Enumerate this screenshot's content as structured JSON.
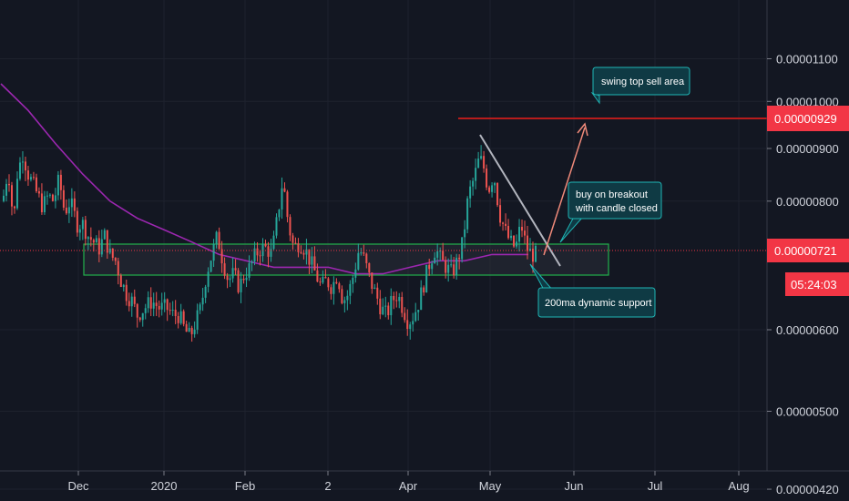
{
  "chart_data": {
    "type": "candlestick",
    "title": "",
    "xlabel": "",
    "ylabel": "",
    "ylim": [
      4.2e-06,
      1.15e-05
    ],
    "y_scale": "log",
    "grid": true,
    "x_ticks": [
      "Dec",
      "2020",
      "Feb",
      "2",
      "Apr",
      "May",
      "Jun",
      "Jul",
      "Aug"
    ],
    "y_ticks": [
      "0.00001100",
      "0.00001000",
      "0.00000900",
      "0.00000800",
      "0.00000600",
      "0.00000500",
      "0.00000420"
    ],
    "horizontal_line": {
      "label": "0.00000929",
      "value": 9.29e-06,
      "color": "#f23645"
    },
    "last_price": {
      "label": "0.00000721",
      "value": 7.21e-06,
      "countdown": "05:24:03",
      "color": "#f23645"
    },
    "series": [
      {
        "name": "200ma",
        "color": "#9c27b0",
        "points": [
          [
            0,
            1.04e-05
          ],
          [
            30,
            9.8e-06
          ],
          [
            60,
            9.1e-06
          ],
          [
            90,
            8.5e-06
          ],
          [
            120,
            8e-06
          ],
          [
            150,
            7.7e-06
          ],
          [
            180,
            7.5e-06
          ],
          [
            210,
            7.3e-06
          ],
          [
            240,
            7.1e-06
          ],
          [
            270,
            7e-06
          ],
          [
            300,
            6.9e-06
          ],
          [
            330,
            6.9e-06
          ],
          [
            360,
            6.9e-06
          ],
          [
            390,
            6.8e-06
          ],
          [
            420,
            6.8e-06
          ],
          [
            450,
            6.9e-06
          ],
          [
            480,
            7e-06
          ],
          [
            510,
            7e-06
          ],
          [
            540,
            7.1e-06
          ],
          [
            580,
            7.1e-06
          ]
        ]
      },
      {
        "name": "price",
        "color": "#26a69a",
        "points": [
          [
            2,
            8e-06
          ],
          [
            8,
            8.6e-06
          ],
          [
            14,
            7.6e-06
          ],
          [
            18,
            8.5e-06
          ],
          [
            24,
            8.9e-06
          ],
          [
            30,
            8.5e-06
          ],
          [
            38,
            8.2e-06
          ],
          [
            46,
            7.9e-06
          ],
          [
            52,
            8.1e-06
          ],
          [
            58,
            8e-06
          ],
          [
            64,
            8.4e-06
          ],
          [
            70,
            7.8e-06
          ],
          [
            76,
            8e-06
          ],
          [
            84,
            7.6e-06
          ],
          [
            90,
            7.6e-06
          ],
          [
            96,
            7.4e-06
          ],
          [
            102,
            7.3e-06
          ],
          [
            108,
            7.2e-06
          ],
          [
            114,
            7.4e-06
          ],
          [
            120,
            7.1e-06
          ],
          [
            126,
            7e-06
          ],
          [
            132,
            6.7e-06
          ],
          [
            138,
            6.5e-06
          ],
          [
            144,
            6.4e-06
          ],
          [
            150,
            6.2e-06
          ],
          [
            158,
            6.3e-06
          ],
          [
            166,
            6.4e-06
          ],
          [
            174,
            6.3e-06
          ],
          [
            182,
            6.3e-06
          ],
          [
            190,
            6.2e-06
          ],
          [
            196,
            6.2e-06
          ],
          [
            202,
            6e-06
          ],
          [
            208,
            5.9e-06
          ],
          [
            214,
            6.1e-06
          ],
          [
            220,
            6.3e-06
          ],
          [
            226,
            6.8e-06
          ],
          [
            232,
            7.1e-06
          ],
          [
            238,
            7.4e-06
          ],
          [
            244,
            7e-06
          ],
          [
            250,
            6.7e-06
          ],
          [
            256,
            6.8e-06
          ],
          [
            262,
            6.6e-06
          ],
          [
            268,
            6.8e-06
          ],
          [
            274,
            6.9e-06
          ],
          [
            280,
            7.1e-06
          ],
          [
            286,
            7.2e-06
          ],
          [
            292,
            7.2e-06
          ],
          [
            298,
            7.1e-06
          ],
          [
            304,
            7.7e-06
          ],
          [
            310,
            8.4e-06
          ],
          [
            316,
            7.6e-06
          ],
          [
            322,
            7.2e-06
          ],
          [
            328,
            7.3e-06
          ],
          [
            334,
            7.2e-06
          ],
          [
            340,
            7e-06
          ],
          [
            346,
            6.8e-06
          ],
          [
            352,
            6.6e-06
          ],
          [
            358,
            6.7e-06
          ],
          [
            364,
            6.6e-06
          ],
          [
            370,
            6.8e-06
          ],
          [
            376,
            6.4e-06
          ],
          [
            382,
            6.5e-06
          ],
          [
            388,
            6.8e-06
          ],
          [
            394,
            7.2e-06
          ],
          [
            400,
            7e-06
          ],
          [
            406,
            6.7e-06
          ],
          [
            412,
            6.5e-06
          ],
          [
            418,
            6.3e-06
          ],
          [
            424,
            6.2e-06
          ],
          [
            430,
            6.4e-06
          ],
          [
            436,
            6.5e-06
          ],
          [
            442,
            6.3e-06
          ],
          [
            448,
            6.1e-06
          ],
          [
            454,
            6.2e-06
          ],
          [
            460,
            6.4e-06
          ],
          [
            466,
            6.7e-06
          ],
          [
            472,
            7e-06
          ],
          [
            478,
            7.2e-06
          ],
          [
            484,
            7e-06
          ],
          [
            490,
            6.9e-06
          ],
          [
            496,
            6.8e-06
          ],
          [
            502,
            7e-06
          ],
          [
            508,
            7.3e-06
          ],
          [
            514,
            8.1e-06
          ],
          [
            520,
            8.4e-06
          ],
          [
            526,
            8.8e-06
          ],
          [
            530,
            8.7e-06
          ],
          [
            536,
            8.2e-06
          ],
          [
            542,
            8.5e-06
          ],
          [
            548,
            7.8e-06
          ],
          [
            554,
            7.5e-06
          ],
          [
            560,
            7.3e-06
          ],
          [
            566,
            7.2e-06
          ],
          [
            572,
            7.6e-06
          ],
          [
            578,
            7.2e-06
          ],
          [
            584,
            7.1e-06
          ],
          [
            588,
            7.1e-06
          ]
        ]
      }
    ],
    "annotations": [
      {
        "text": "swing top sell area"
      },
      {
        "text": "buy on breakout"
      },
      {
        "text": "with candle closed"
      },
      {
        "text": "200ma dynamic support"
      }
    ]
  }
}
